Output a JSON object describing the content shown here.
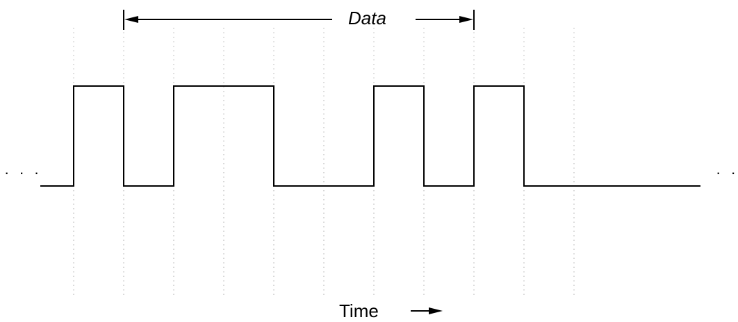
{
  "diagram": {
    "data_label": "Data",
    "time_label": "Time",
    "ellipsis_left": "· · ·",
    "ellipsis_right": "· ·",
    "bits": [
      0,
      1,
      0,
      1,
      1,
      0,
      0,
      1,
      0,
      1,
      0,
      0
    ],
    "data_span_bits": [
      2,
      9
    ],
    "line_color": "#000000",
    "grid_color": "#b0b0b0"
  }
}
